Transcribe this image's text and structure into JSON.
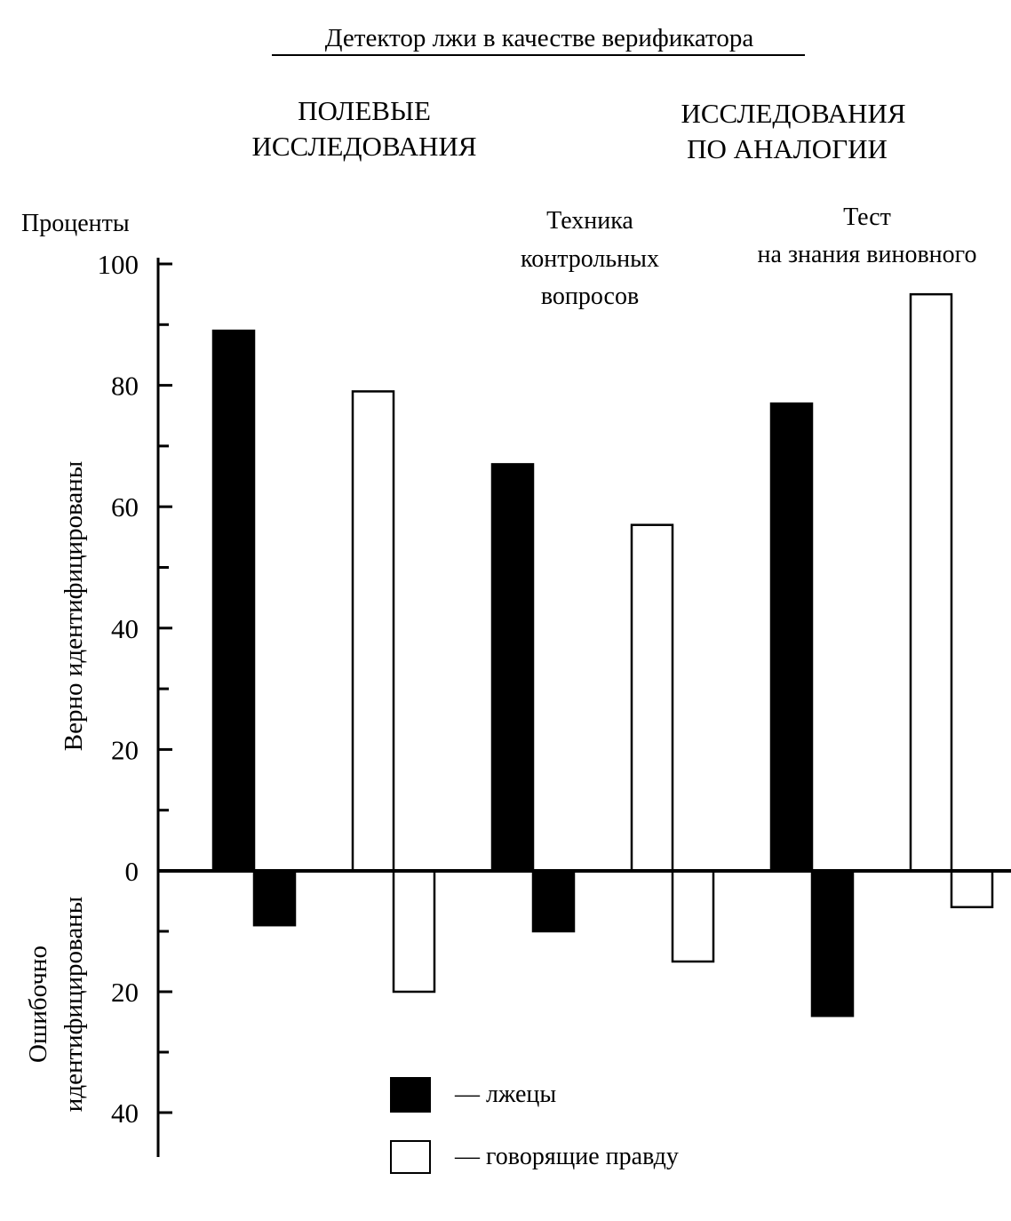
{
  "chart_data": {
    "type": "bar",
    "title": "Детектор лжи в качестве верификатора",
    "section_headings": [
      {
        "lines": [
          "ПОЛЕВЫЕ",
          "ИССЛЕДОВАНИЯ"
        ]
      },
      {
        "lines": [
          "ИССЛЕДОВАНИЯ",
          "ПО АНАЛОГИИ"
        ]
      }
    ],
    "group_labels": [
      {
        "lines": [
          "Техника",
          "контрольных",
          "вопросов"
        ]
      },
      {
        "lines": [
          "Тест",
          "на знания виновного"
        ]
      }
    ],
    "ylabel_unit": "Проценты",
    "ylabel_upper": "Верно идентифицированы",
    "ylabel_lower_lines": [
      "Ошибочно",
      "идентифицированы"
    ],
    "upper_ticks": [
      "0",
      "20",
      "40",
      "60",
      "80",
      "100"
    ],
    "lower_ticks": [
      "20",
      "40"
    ],
    "ylim_upper": [
      0,
      100
    ],
    "ylim_lower": [
      0,
      40
    ],
    "groups": [
      {
        "series": "liars",
        "correct": 89,
        "wrong": 9
      },
      {
        "series": "truthful",
        "correct": 79,
        "wrong": 20
      },
      {
        "series": "liars",
        "correct": 67,
        "wrong": 10
      },
      {
        "series": "truthful",
        "correct": 57,
        "wrong": 15
      },
      {
        "series": "liars",
        "correct": 77,
        "wrong": 24
      },
      {
        "series": "truthful",
        "correct": 95,
        "wrong": 6
      }
    ],
    "legend": [
      {
        "key": "liars",
        "label": "— лжецы",
        "fill": "#000000"
      },
      {
        "key": "truthful",
        "label": "— говорящие правду",
        "fill": "#ffffff"
      }
    ]
  }
}
